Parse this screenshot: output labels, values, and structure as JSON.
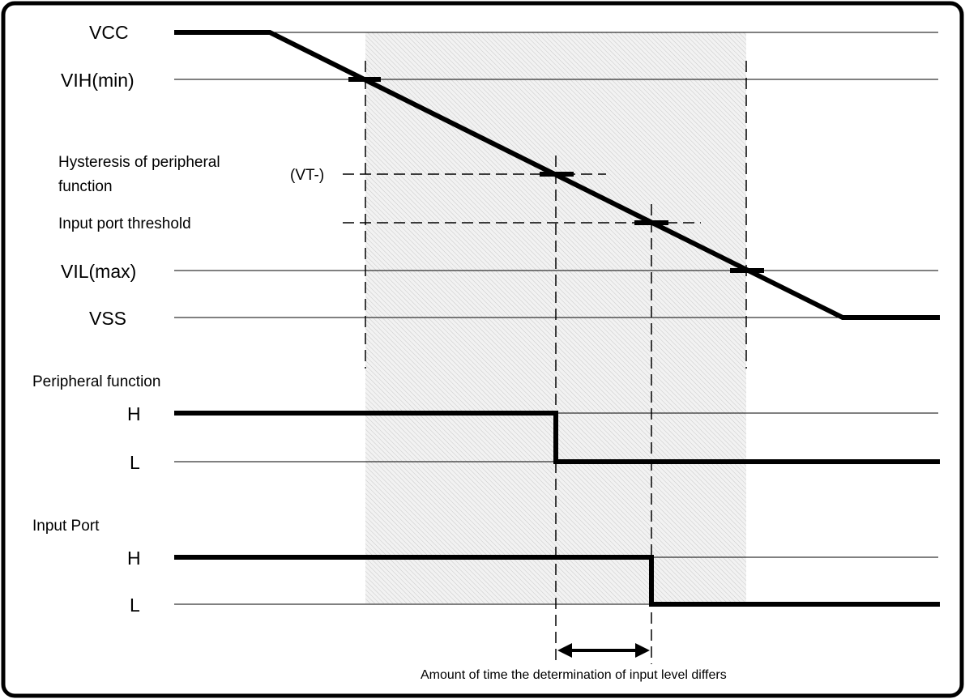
{
  "voltage_levels": {
    "vcc": "VCC",
    "vih_min": "VIH(min)",
    "vil_max": "VIL(max)",
    "vss": "VSS"
  },
  "thresholds": {
    "hysteresis_line1": "Hysteresis of peripheral",
    "hysteresis_line2": "function",
    "vt_minus": "(VT-)",
    "input_port_threshold": "Input port threshold"
  },
  "peripheral_function": {
    "title": "Peripheral function",
    "high": "H",
    "low": "L"
  },
  "input_port": {
    "title": "Input Port",
    "high": "H",
    "low": "L"
  },
  "annotation": {
    "time_difference": "Amount of time the determination of input level differs"
  }
}
